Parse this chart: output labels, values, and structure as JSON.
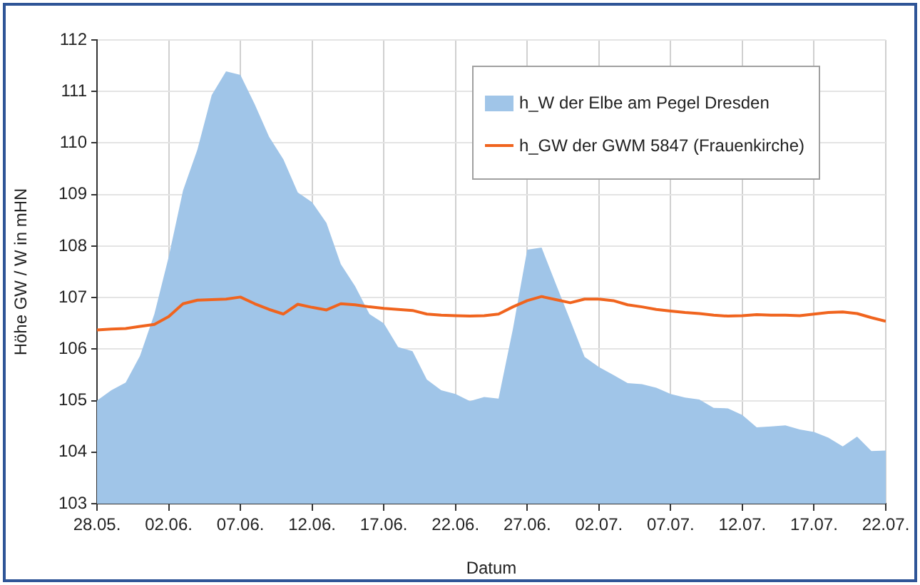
{
  "chart_data": {
    "type": "area",
    "xlabel": "Datum",
    "ylabel": "Höhe GW / W in mHN",
    "x": [
      "--05-28",
      "--05-29",
      "--05-30",
      "--05-31",
      "--06-01",
      "--06-02",
      "--06-03",
      "--06-04",
      "--06-05",
      "--06-06",
      "--06-07",
      "--06-08",
      "--06-09",
      "--06-10",
      "--06-11",
      "--06-12",
      "--06-13",
      "--06-14",
      "--06-15",
      "--06-16",
      "--06-17",
      "--06-18",
      "--06-19",
      "--06-20",
      "--06-21",
      "--06-22",
      "--06-23",
      "--06-24",
      "--06-25",
      "--06-26",
      "--06-27",
      "--06-28",
      "--06-29",
      "--06-30",
      "--07-01",
      "--07-02",
      "--07-03",
      "--07-04",
      "--07-05",
      "--07-06",
      "--07-07",
      "--07-08",
      "--07-09",
      "--07-10",
      "--07-11",
      "--07-12",
      "--07-13",
      "--07-14",
      "--07-15",
      "--07-16",
      "--07-17",
      "--07-18",
      "--07-19",
      "--07-20",
      "--07-21",
      "--07-22"
    ],
    "series": [
      {
        "name": "h_W der Elbe am Pegel Dresden",
        "type": "area",
        "color": "#a0c5e8",
        "values": [
          105.0,
          105.2,
          105.35,
          105.87,
          106.68,
          107.79,
          109.08,
          109.87,
          110.93,
          111.39,
          111.32,
          110.75,
          110.12,
          109.68,
          109.04,
          108.85,
          108.45,
          107.65,
          107.22,
          106.68,
          106.5,
          106.04,
          105.96,
          105.41,
          105.2,
          105.13,
          104.99,
          105.07,
          105.04,
          106.39,
          107.93,
          107.97,
          107.26,
          106.56,
          105.85,
          105.65,
          105.5,
          105.34,
          105.32,
          105.25,
          105.13,
          105.06,
          105.02,
          104.86,
          104.85,
          104.72,
          104.48,
          104.5,
          104.52,
          104.44,
          104.39,
          104.28,
          104.11,
          104.3,
          104.02,
          104.03
        ]
      },
      {
        "name": "h_GW der GWM 5847 (Frauenkirche)",
        "type": "line",
        "color": "#f0641e",
        "values": [
          106.37,
          106.39,
          106.4,
          106.44,
          106.48,
          106.63,
          106.88,
          106.95,
          106.96,
          106.97,
          107.01,
          106.88,
          106.77,
          106.68,
          106.87,
          106.81,
          106.76,
          106.88,
          106.86,
          106.82,
          106.79,
          106.77,
          106.75,
          106.68,
          106.66,
          106.65,
          106.64,
          106.65,
          106.68,
          106.82,
          106.94,
          107.02,
          106.96,
          106.9,
          106.97,
          106.97,
          106.94,
          106.86,
          106.82,
          106.77,
          106.74,
          106.71,
          106.69,
          106.66,
          106.64,
          106.65,
          106.67,
          106.66,
          106.66,
          106.65,
          106.68,
          106.71,
          106.72,
          106.69,
          106.61,
          106.54
        ]
      }
    ],
    "xlim": [
      "--05-28",
      "--07-22"
    ],
    "xticks": [
      {
        "value": "--05-28",
        "label": "28.05."
      },
      {
        "value": "--06-02",
        "label": "02.06."
      },
      {
        "value": "--06-07",
        "label": "07.06."
      },
      {
        "value": "--06-12",
        "label": "12.06."
      },
      {
        "value": "--06-17",
        "label": "17.06."
      },
      {
        "value": "--06-22",
        "label": "22.06."
      },
      {
        "value": "--06-27",
        "label": "27.06."
      },
      {
        "value": "--07-02",
        "label": "02.07."
      },
      {
        "value": "--07-07",
        "label": "07.07."
      },
      {
        "value": "--07-12",
        "label": "12.07."
      },
      {
        "value": "--07-17",
        "label": "17.07."
      },
      {
        "value": "--07-22",
        "label": "22.07."
      }
    ],
    "ylim": [
      103,
      112
    ],
    "yticks": [
      103,
      104,
      105,
      106,
      107,
      108,
      109,
      110,
      111,
      112
    ],
    "grid": true,
    "legend": "top right",
    "marker": "none"
  }
}
